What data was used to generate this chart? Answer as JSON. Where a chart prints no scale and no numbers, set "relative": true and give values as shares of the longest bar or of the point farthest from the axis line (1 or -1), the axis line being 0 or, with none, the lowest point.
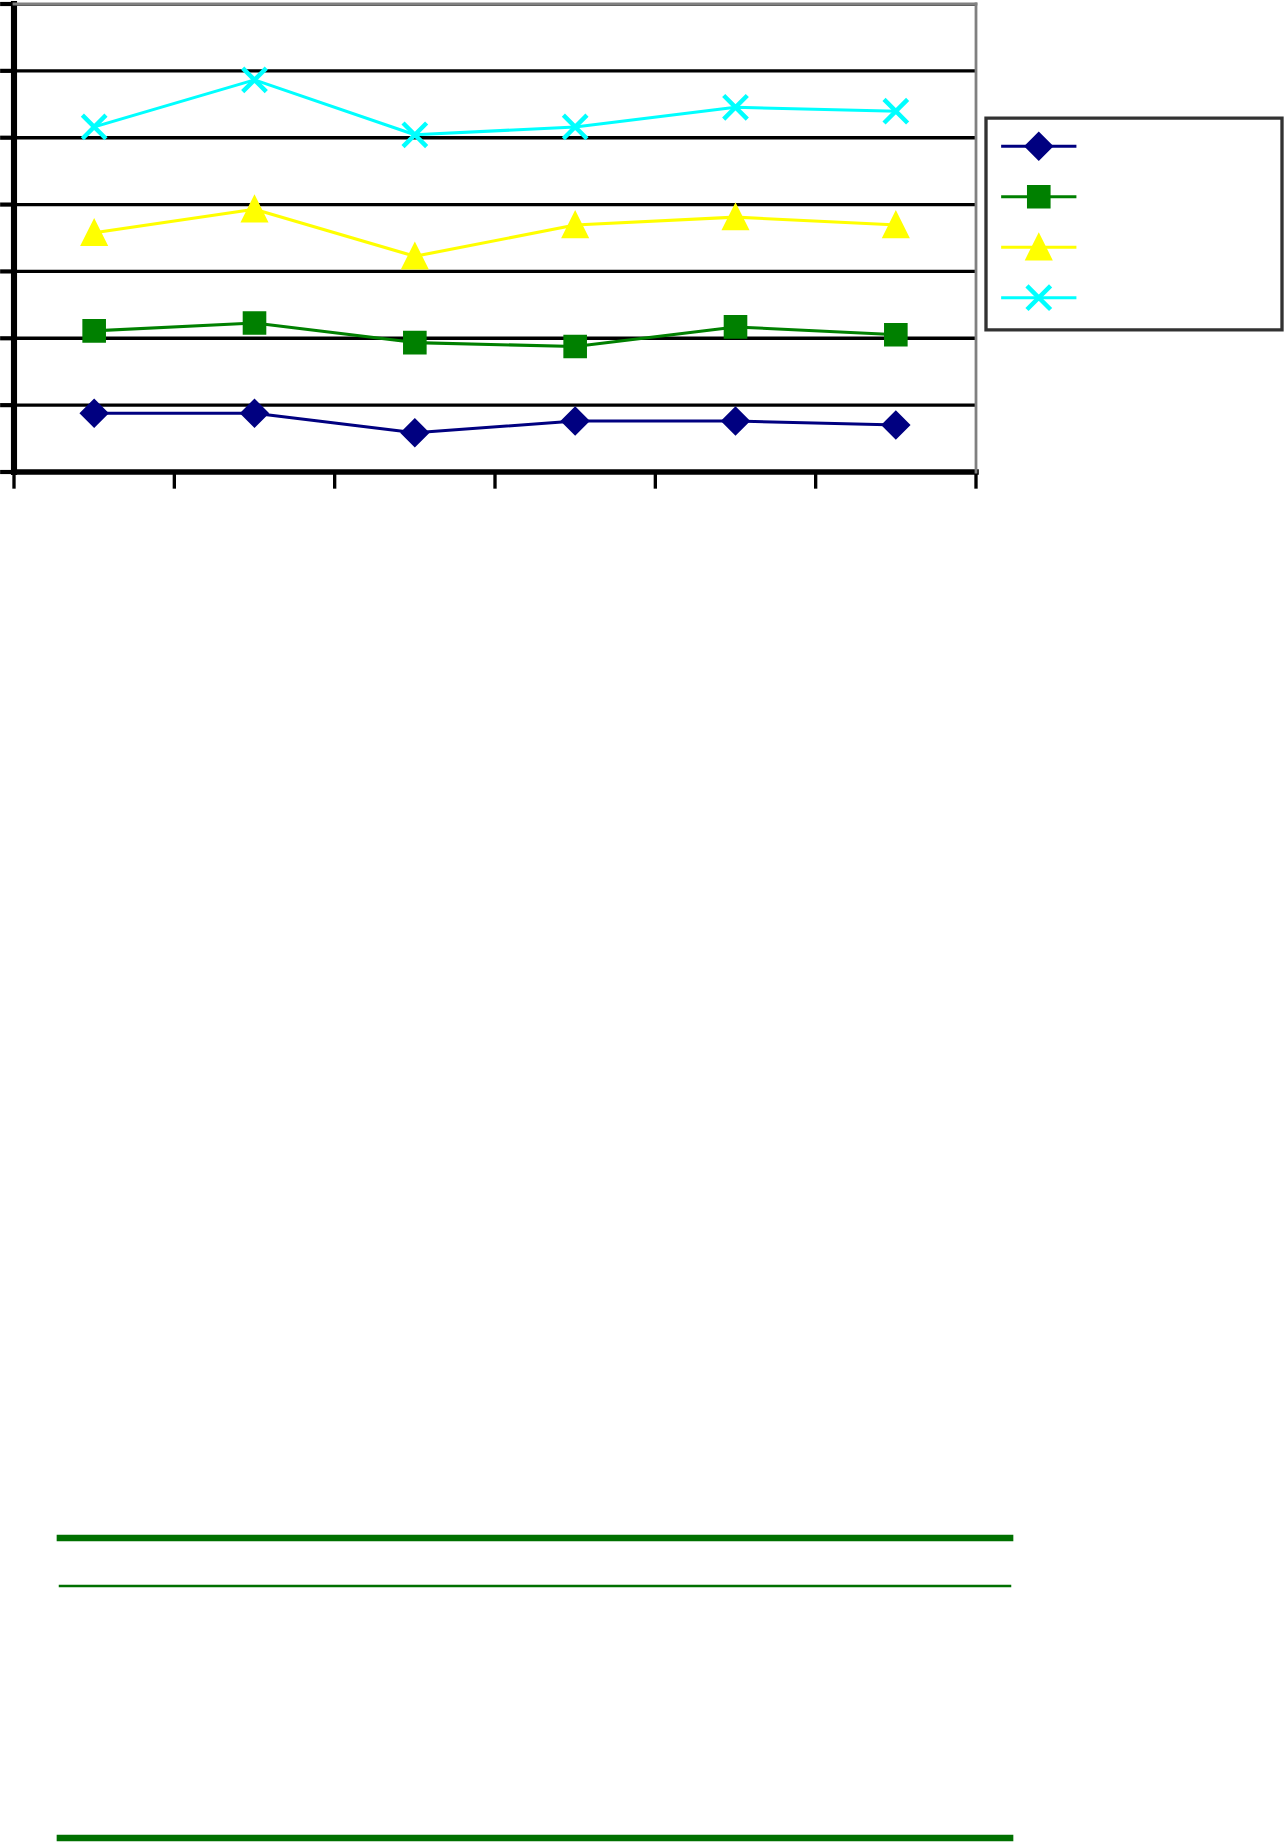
{
  "chart_data": {
    "type": "line",
    "categories": [
      null,
      null,
      null,
      null,
      null,
      null
    ],
    "relative": true,
    "grid": "y",
    "line_style": "solid",
    "series": [
      {
        "color": "#000080",
        "marker": "diamond",
        "values": [
          0.15,
          0.15,
          0.1,
          0.13,
          0.13,
          0.12
        ]
      },
      {
        "color": "#008000",
        "marker": "square",
        "values": [
          0.36,
          0.38,
          0.33,
          0.32,
          0.37,
          0.35
        ]
      },
      {
        "color": "#ffff00",
        "marker": "triangle",
        "values": [
          0.61,
          0.67,
          0.55,
          0.63,
          0.65,
          0.63
        ]
      },
      {
        "color": "#00ffff",
        "marker": "cross",
        "values": [
          0.88,
          1,
          0.86,
          0.88,
          0.93,
          0.92
        ]
      }
    ]
  }
}
